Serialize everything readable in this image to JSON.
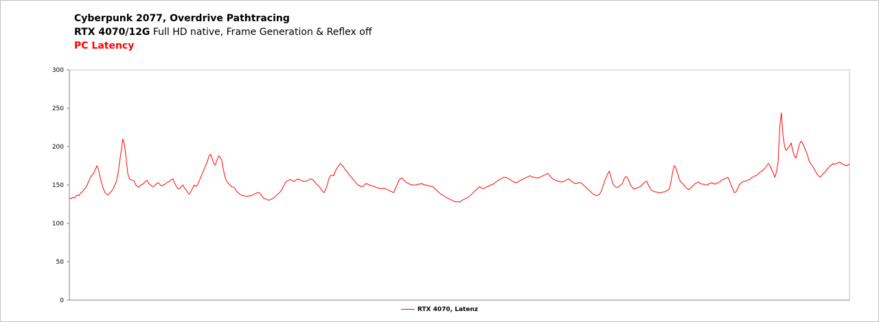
{
  "chart_data": {
    "type": "line",
    "title": "Cyberpunk 2077, Overdrive Pathtracing",
    "subtitle_bold": "RTX 4070/12G",
    "subtitle_rest": "Full HD native, Frame Generation & Reflex off",
    "metric": "PC Latency",
    "ylim": [
      0,
      300
    ],
    "yticks": [
      "0",
      "50",
      "100",
      "150",
      "200",
      "250",
      "300"
    ],
    "grid": false,
    "legend_position": "bottom",
    "series": [
      {
        "name": "RTX 4070, Latenz",
        "color": "#ff0000",
        "values": [
          133,
          132,
          134,
          133,
          135,
          137,
          136,
          140,
          141,
          144,
          146,
          150,
          155,
          160,
          163,
          165,
          170,
          175,
          170,
          160,
          152,
          145,
          140,
          138,
          137,
          140,
          142,
          145,
          150,
          155,
          165,
          180,
          195,
          210,
          202,
          185,
          165,
          158,
          157,
          156,
          155,
          150,
          148,
          147,
          150,
          151,
          152,
          155,
          156,
          152,
          150,
          148,
          148,
          150,
          152,
          153,
          150,
          149,
          150,
          151,
          153,
          154,
          155,
          157,
          158,
          152,
          148,
          145,
          145,
          148,
          150,
          146,
          144,
          140,
          138,
          142,
          146,
          150,
          148,
          150,
          155,
          160,
          165,
          170,
          175,
          180,
          187,
          190,
          185,
          178,
          176,
          182,
          188,
          186,
          182,
          170,
          160,
          155,
          152,
          150,
          148,
          147,
          146,
          142,
          140,
          138,
          137,
          136,
          136,
          135,
          135,
          136,
          136,
          137,
          138,
          139,
          140,
          140,
          138,
          135,
          132,
          132,
          131,
          130,
          131,
          132,
          133,
          135,
          137,
          139,
          141,
          144,
          148,
          152,
          155,
          156,
          157,
          156,
          155,
          155,
          157,
          158,
          157,
          156,
          155,
          155,
          155,
          156,
          157,
          158,
          157,
          155,
          152,
          150,
          148,
          145,
          142,
          140,
          144,
          150,
          158,
          162,
          163,
          162,
          168,
          172,
          175,
          178,
          176,
          174,
          170,
          168,
          165,
          162,
          160,
          157,
          155,
          152,
          150,
          149,
          148,
          148,
          150,
          152,
          151,
          150,
          149,
          149,
          148,
          147,
          146,
          146,
          145,
          145,
          146,
          145,
          144,
          143,
          142,
          141,
          140,
          145,
          150,
          155,
          158,
          159,
          157,
          155,
          153,
          152,
          151,
          150,
          150,
          150,
          150,
          151,
          151,
          152,
          151,
          150,
          150,
          149,
          149,
          148,
          148,
          146,
          144,
          142,
          140,
          138,
          137,
          136,
          134,
          133,
          132,
          131,
          130,
          129,
          128,
          128,
          128,
          128,
          130,
          131,
          132,
          133,
          134,
          136,
          138,
          140,
          142,
          144,
          146,
          148,
          146,
          145,
          146,
          147,
          148,
          149,
          150,
          151,
          152,
          154,
          155,
          157,
          158,
          159,
          160,
          160,
          159,
          158,
          157,
          155,
          154,
          153,
          153,
          155,
          156,
          157,
          158,
          159,
          160,
          161,
          162,
          161,
          160,
          160,
          159,
          159,
          160,
          161,
          162,
          163,
          164,
          165,
          163,
          160,
          158,
          157,
          156,
          155,
          155,
          154,
          154,
          155,
          156,
          157,
          158,
          156,
          154,
          153,
          152,
          152,
          153,
          153,
          152,
          150,
          148,
          146,
          144,
          142,
          140,
          138,
          137,
          136,
          137,
          138,
          142,
          148,
          155,
          160,
          165,
          168,
          160,
          152,
          149,
          147,
          147,
          148,
          150,
          152,
          158,
          161,
          160,
          155,
          150,
          147,
          145,
          145,
          146,
          147,
          148,
          150,
          152,
          154,
          155,
          150,
          146,
          143,
          142,
          141,
          141,
          140,
          140,
          140,
          141,
          141,
          142,
          143,
          145,
          155,
          167,
          175,
          172,
          165,
          158,
          154,
          152,
          150,
          147,
          145,
          144,
          146,
          148,
          150,
          152,
          153,
          154,
          152,
          151,
          151,
          150,
          150,
          151,
          152,
          153,
          152,
          151,
          152,
          153,
          154,
          156,
          157,
          158,
          159,
          160,
          156,
          150,
          145,
          140,
          141,
          145,
          150,
          152,
          154,
          155,
          155,
          156,
          157,
          158,
          160,
          161,
          162,
          163,
          165,
          167,
          168,
          170,
          172,
          175,
          178,
          175,
          170,
          166,
          160,
          167,
          180,
          225,
          244,
          215,
          200,
          195,
          198,
          200,
          205,
          195,
          188,
          185,
          193,
          202,
          207,
          205,
          200,
          195,
          190,
          182,
          178,
          175,
          172,
          168,
          164,
          162,
          160,
          163,
          165,
          167,
          170,
          172,
          175,
          176,
          178,
          177,
          178,
          179,
          180,
          178,
          177,
          176,
          175,
          176,
          177
        ]
      }
    ]
  }
}
